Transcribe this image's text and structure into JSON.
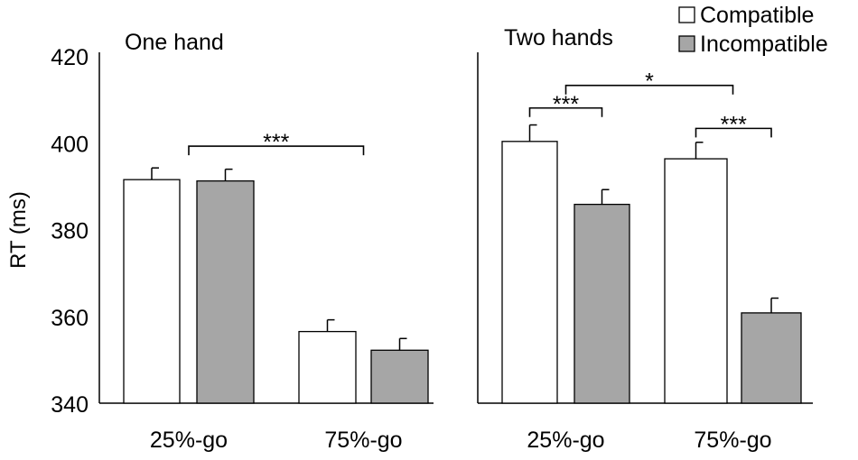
{
  "chart_data": {
    "type": "bar",
    "ylabel": "RT (ms)",
    "ylim": [
      340,
      420
    ],
    "yticks": [
      "340",
      "360",
      "380",
      "400",
      "420"
    ],
    "legend": {
      "placement": "top-right",
      "entries": [
        {
          "name": "Compatible",
          "color": "#ffffff"
        },
        {
          "name": "Incompatible",
          "color": "#a6a6a6"
        }
      ]
    },
    "series_colors": {
      "Compatible": "#ffffff",
      "Incompatible": "#a6a6a6"
    },
    "panels": [
      {
        "title": "One hand",
        "categories": [
          "25%-go",
          "75%-go"
        ],
        "series": [
          {
            "name": "Compatible",
            "values": [
              391.5,
              356.5
            ],
            "errors": [
              2.7,
              2.7
            ]
          },
          {
            "name": "Incompatible",
            "values": [
              391.2,
              352.2
            ],
            "errors": [
              2.7,
              2.7
            ]
          }
        ],
        "significance": [
          {
            "label": "***",
            "from": "25%-go",
            "to": "75%-go",
            "level": 399.2
          }
        ]
      },
      {
        "title": "Two hands",
        "categories": [
          "25%-go",
          "75%-go"
        ],
        "series": [
          {
            "name": "Compatible",
            "values": [
              400.3,
              396.3
            ],
            "errors": [
              3.8,
              3.8
            ]
          },
          {
            "name": "Incompatible",
            "values": [
              385.8,
              360.8
            ],
            "errors": [
              3.4,
              3.4
            ]
          }
        ],
        "significance": [
          {
            "label": "***",
            "from": "25%-go Compatible",
            "to": "25%-go Incompatible",
            "level": 408.0
          },
          {
            "label": "***",
            "from": "75%-go Compatible",
            "to": "75%-go Incompatible",
            "level": 403.3
          },
          {
            "label": "*",
            "from": "25%-go",
            "to": "75%-go",
            "level": 413.2
          }
        ]
      }
    ]
  }
}
